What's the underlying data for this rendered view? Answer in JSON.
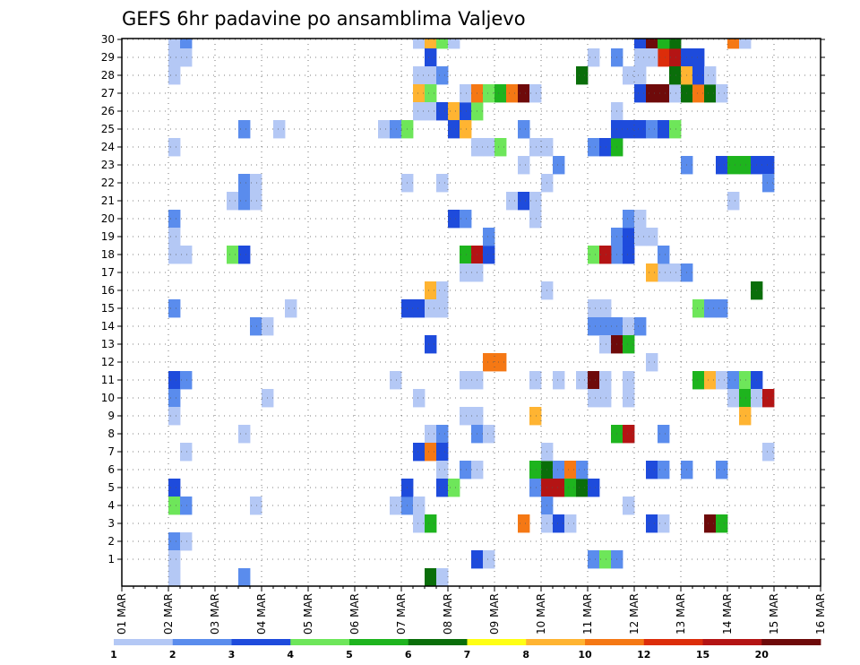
{
  "chart_data": {
    "type": "heatmap",
    "title": "GEFS 6hr padavine po ansamblima Valjevo",
    "x_tick_labels": [
      "01 MAR",
      "02 MAR",
      "03 MAR",
      "04 MAR",
      "05 MAR",
      "06 MAR",
      "07 MAR",
      "08 MAR",
      "09 MAR",
      "10 MAR",
      "11 MAR",
      "12 MAR",
      "13 MAR",
      "14 MAR",
      "15 MAR",
      "16 MAR"
    ],
    "y_tick_labels": [
      "1",
      "2",
      "3",
      "4",
      "5",
      "6",
      "7",
      "8",
      "9",
      "10",
      "11",
      "12",
      "13",
      "14",
      "15",
      "16",
      "17",
      "18",
      "19",
      "20",
      "21",
      "22",
      "23",
      "24",
      "25",
      "26",
      "27",
      "28",
      "29",
      "30"
    ],
    "x_range_days": [
      0,
      15
    ],
    "time_step_hours": 6,
    "y_range_members": [
      0,
      30
    ],
    "grid": "dotted",
    "colorbar": {
      "position": "bottom",
      "tick_labels": [
        "1",
        "2",
        "3",
        "4",
        "5",
        "6",
        "7",
        "8",
        "10",
        "12",
        "15",
        "20"
      ],
      "bins": [
        {
          "from": 1,
          "to": 2,
          "color": "#b4c8f5"
        },
        {
          "from": 2,
          "to": 3,
          "color": "#5a8ced"
        },
        {
          "from": 3,
          "to": 4,
          "color": "#1e4bdc"
        },
        {
          "from": 4,
          "to": 5,
          "color": "#6ee65a"
        },
        {
          "from": 5,
          "to": 6,
          "color": "#1eb41e"
        },
        {
          "from": 6,
          "to": 7,
          "color": "#0a6e0a"
        },
        {
          "from": 7,
          "to": 8,
          "color": "#ffff14"
        },
        {
          "from": 8,
          "to": 10,
          "color": "#ffb432"
        },
        {
          "from": 10,
          "to": 12,
          "color": "#f57814"
        },
        {
          "from": 12,
          "to": 15,
          "color": "#dc2d0a"
        },
        {
          "from": 15,
          "to": 20,
          "color": "#b41414"
        },
        {
          "from": 20,
          "to": null,
          "color": "#6e0a0a"
        }
      ]
    },
    "cell_columns": [
      "day_offset",
      "member",
      "precip_class"
    ],
    "cells": [
      [
        1.0,
        30,
        1
      ],
      [
        1.25,
        30,
        2
      ],
      [
        1.0,
        29,
        1
      ],
      [
        1.25,
        29,
        1
      ],
      [
        1.0,
        28,
        1
      ],
      [
        1.0,
        24,
        1
      ],
      [
        1.0,
        20,
        2
      ],
      [
        1.0,
        19,
        1
      ],
      [
        1.0,
        18,
        1
      ],
      [
        1.25,
        18,
        1
      ],
      [
        1.0,
        15,
        2
      ],
      [
        1.0,
        11,
        3
      ],
      [
        1.25,
        11,
        2
      ],
      [
        1.0,
        10,
        2
      ],
      [
        1.0,
        9,
        1
      ],
      [
        1.25,
        7,
        1
      ],
      [
        1.0,
        5,
        3
      ],
      [
        1.0,
        4,
        4
      ],
      [
        1.25,
        4,
        2
      ],
      [
        1.0,
        2,
        2
      ],
      [
        1.25,
        2,
        1
      ],
      [
        1.0,
        1,
        1
      ],
      [
        1.0,
        0,
        1
      ],
      [
        2.25,
        21,
        1
      ],
      [
        2.5,
        25,
        2
      ],
      [
        2.5,
        22,
        2
      ],
      [
        2.5,
        21,
        2
      ],
      [
        2.75,
        22,
        1
      ],
      [
        2.75,
        21,
        1
      ],
      [
        2.25,
        18,
        4
      ],
      [
        2.5,
        18,
        3
      ],
      [
        2.5,
        8,
        1
      ],
      [
        2.5,
        0,
        2
      ],
      [
        2.75,
        14,
        2
      ],
      [
        3.0,
        14,
        1
      ],
      [
        2.75,
        4,
        1
      ],
      [
        3.0,
        10,
        1
      ],
      [
        3.25,
        25,
        1
      ],
      [
        3.5,
        15,
        1
      ],
      [
        5.5,
        25,
        1
      ],
      [
        5.75,
        25,
        2
      ],
      [
        6.0,
        25,
        4
      ],
      [
        5.75,
        11,
        1
      ],
      [
        5.75,
        4,
        1
      ],
      [
        6.0,
        4,
        2
      ],
      [
        6.0,
        22,
        1
      ],
      [
        6.0,
        15,
        3
      ],
      [
        6.25,
        15,
        3
      ],
      [
        6.0,
        5,
        3
      ],
      [
        6.25,
        3,
        1
      ],
      [
        6.25,
        7,
        3
      ],
      [
        6.25,
        10,
        1
      ],
      [
        6.25,
        4,
        1
      ],
      [
        6.25,
        30,
        1
      ],
      [
        6.5,
        30,
        8
      ],
      [
        6.75,
        30,
        4
      ],
      [
        7.0,
        30,
        1
      ],
      [
        6.5,
        29,
        3
      ],
      [
        6.25,
        28,
        1
      ],
      [
        6.5,
        28,
        1
      ],
      [
        6.75,
        28,
        2
      ],
      [
        6.25,
        27,
        8
      ],
      [
        6.5,
        27,
        4
      ],
      [
        6.25,
        26,
        1
      ],
      [
        6.5,
        26,
        1
      ],
      [
        6.75,
        26,
        3
      ],
      [
        7.0,
        26,
        8
      ],
      [
        7.25,
        26,
        3
      ],
      [
        7.5,
        26,
        4
      ],
      [
        7.25,
        27,
        1
      ],
      [
        7.5,
        27,
        9
      ],
      [
        7.75,
        27,
        4
      ],
      [
        8.0,
        27,
        5
      ],
      [
        8.25,
        27,
        9
      ],
      [
        8.5,
        27,
        12
      ],
      [
        8.75,
        27,
        1
      ],
      [
        7.0,
        25,
        3
      ],
      [
        7.25,
        25,
        8
      ],
      [
        8.5,
        25,
        2
      ],
      [
        7.5,
        24,
        1
      ],
      [
        7.75,
        24,
        1
      ],
      [
        8.0,
        24,
        4
      ],
      [
        8.5,
        23,
        1
      ],
      [
        6.75,
        22,
        1
      ],
      [
        8.25,
        21,
        1
      ],
      [
        8.5,
        21,
        3
      ],
      [
        8.75,
        21,
        1
      ],
      [
        7.0,
        20,
        3
      ],
      [
        7.25,
        20,
        2
      ],
      [
        7.25,
        18,
        5
      ],
      [
        7.5,
        18,
        11
      ],
      [
        7.75,
        18,
        3
      ],
      [
        7.75,
        19,
        2
      ],
      [
        6.5,
        16,
        8
      ],
      [
        6.75,
        16,
        1
      ],
      [
        7.25,
        17,
        1
      ],
      [
        7.5,
        17,
        1
      ],
      [
        6.5,
        15,
        1
      ],
      [
        6.75,
        15,
        1
      ],
      [
        6.5,
        13,
        3
      ],
      [
        7.75,
        12,
        9
      ],
      [
        8.0,
        12,
        9
      ],
      [
        7.25,
        11,
        1
      ],
      [
        7.5,
        11,
        1
      ],
      [
        7.25,
        9,
        1
      ],
      [
        7.5,
        9,
        1
      ],
      [
        6.5,
        8,
        1
      ],
      [
        6.75,
        8,
        2
      ],
      [
        7.5,
        8,
        2
      ],
      [
        7.75,
        8,
        1
      ],
      [
        6.5,
        7,
        9
      ],
      [
        6.75,
        7,
        3
      ],
      [
        6.75,
        6,
        1
      ],
      [
        7.25,
        6,
        2
      ],
      [
        7.5,
        6,
        1
      ],
      [
        6.75,
        5,
        3
      ],
      [
        7.0,
        5,
        4
      ],
      [
        6.5,
        3,
        5
      ],
      [
        6.5,
        0,
        6
      ],
      [
        6.75,
        0,
        1
      ],
      [
        7.5,
        1,
        3
      ],
      [
        7.75,
        1,
        1
      ],
      [
        8.5,
        25,
        2
      ],
      [
        8.75,
        24,
        1
      ],
      [
        8.75,
        20,
        1
      ],
      [
        9.0,
        22,
        1
      ],
      [
        9.25,
        23,
        2
      ],
      [
        9.0,
        24,
        1
      ],
      [
        9.0,
        16,
        1
      ],
      [
        8.75,
        11,
        1
      ],
      [
        9.25,
        11,
        1
      ],
      [
        8.75,
        9,
        8
      ],
      [
        8.75,
        6,
        5
      ],
      [
        9.0,
        6,
        6
      ],
      [
        9.25,
        6,
        2
      ],
      [
        9.5,
        6,
        9
      ],
      [
        8.75,
        5,
        2
      ],
      [
        9.0,
        5,
        11
      ],
      [
        9.25,
        5,
        11
      ],
      [
        9.5,
        5,
        5
      ],
      [
        9.75,
        5,
        6
      ],
      [
        10.0,
        5,
        3
      ],
      [
        9.0,
        4,
        2
      ],
      [
        8.5,
        3,
        9
      ],
      [
        9.0,
        3,
        1
      ],
      [
        9.25,
        3,
        3
      ],
      [
        9.5,
        3,
        1
      ],
      [
        9.0,
        7,
        1
      ],
      [
        9.75,
        11,
        1
      ],
      [
        9.75,
        6,
        2
      ],
      [
        9.75,
        28,
        6
      ],
      [
        10.0,
        24,
        2
      ],
      [
        10.25,
        24,
        3
      ],
      [
        10.5,
        24,
        5
      ],
      [
        10.0,
        15,
        1
      ],
      [
        10.25,
        15,
        1
      ],
      [
        10.0,
        14,
        2
      ],
      [
        10.25,
        14,
        2
      ],
      [
        10.5,
        14,
        2
      ],
      [
        10.75,
        14,
        1
      ],
      [
        11.0,
        14,
        2
      ],
      [
        10.25,
        13,
        1
      ],
      [
        10.5,
        13,
        12
      ],
      [
        10.75,
        13,
        5
      ],
      [
        10.0,
        11,
        12
      ],
      [
        10.25,
        11,
        1
      ],
      [
        10.5,
        18,
        2
      ],
      [
        10.75,
        18,
        3
      ],
      [
        10.0,
        18,
        4
      ],
      [
        10.25,
        18,
        11
      ],
      [
        10.5,
        19,
        2
      ],
      [
        10.75,
        19,
        3
      ],
      [
        10.75,
        20,
        2
      ],
      [
        11.0,
        20,
        1
      ],
      [
        11.0,
        19,
        1
      ],
      [
        11.25,
        19,
        1
      ],
      [
        10.0,
        10,
        1
      ],
      [
        10.25,
        10,
        1
      ],
      [
        10.75,
        10,
        1
      ],
      [
        10.5,
        8,
        5
      ],
      [
        10.75,
        8,
        11
      ],
      [
        10.0,
        29,
        1
      ],
      [
        10.5,
        29,
        2
      ],
      [
        10.75,
        28,
        1
      ],
      [
        11.0,
        28,
        1
      ],
      [
        10.5,
        26,
        1
      ],
      [
        10.5,
        25,
        3
      ],
      [
        10.75,
        25,
        3
      ],
      [
        11.0,
        25,
        3
      ],
      [
        11.25,
        25,
        2
      ],
      [
        11.5,
        25,
        3
      ],
      [
        11.75,
        25,
        4
      ],
      [
        11.0,
        27,
        3
      ],
      [
        11.25,
        27,
        12
      ],
      [
        11.5,
        27,
        12
      ],
      [
        11.75,
        27,
        1
      ],
      [
        12.0,
        27,
        6
      ],
      [
        12.25,
        27,
        9
      ],
      [
        12.5,
        27,
        6
      ],
      [
        12.75,
        27,
        1
      ],
      [
        11.5,
        29,
        10
      ],
      [
        11.75,
        29,
        11
      ],
      [
        12.0,
        29,
        3
      ],
      [
        12.25,
        29,
        3
      ],
      [
        11.75,
        28,
        6
      ],
      [
        12.0,
        28,
        8
      ],
      [
        12.25,
        28,
        3
      ],
      [
        12.5,
        28,
        1
      ],
      [
        11.75,
        30,
        6
      ],
      [
        11.0,
        30,
        3
      ],
      [
        11.25,
        30,
        12
      ],
      [
        11.5,
        30,
        5
      ],
      [
        11.0,
        29,
        1
      ],
      [
        11.25,
        29,
        1
      ],
      [
        11.5,
        17,
        1
      ],
      [
        11.75,
        17,
        1
      ],
      [
        11.5,
        18,
        2
      ],
      [
        11.25,
        17,
        8
      ],
      [
        10.75,
        11,
        1
      ],
      [
        11.25,
        12,
        1
      ],
      [
        11.5,
        8,
        2
      ],
      [
        11.25,
        6,
        3
      ],
      [
        11.5,
        6,
        2
      ],
      [
        11.25,
        3,
        3
      ],
      [
        11.5,
        3,
        1
      ],
      [
        10.0,
        1,
        2
      ],
      [
        10.25,
        1,
        4
      ],
      [
        10.5,
        1,
        2
      ],
      [
        10.75,
        4,
        1
      ],
      [
        12.0,
        17,
        2
      ],
      [
        12.25,
        15,
        4
      ],
      [
        12.5,
        15,
        2
      ],
      [
        12.75,
        15,
        2
      ],
      [
        12.25,
        11,
        5
      ],
      [
        12.5,
        11,
        8
      ],
      [
        12.75,
        11,
        1
      ],
      [
        13.0,
        11,
        2
      ],
      [
        13.25,
        11,
        4
      ],
      [
        13.5,
        11,
        3
      ],
      [
        13.0,
        10,
        1
      ],
      [
        13.25,
        10,
        5
      ],
      [
        13.5,
        10,
        1
      ],
      [
        13.75,
        10,
        11
      ],
      [
        12.0,
        6,
        2
      ],
      [
        12.75,
        6,
        2
      ],
      [
        12.5,
        3,
        12
      ],
      [
        12.75,
        3,
        5
      ],
      [
        12.0,
        23,
        2
      ],
      [
        12.75,
        23,
        3
      ],
      [
        13.0,
        23,
        5
      ],
      [
        13.25,
        23,
        5
      ],
      [
        13.5,
        23,
        3
      ],
      [
        13.75,
        23,
        3
      ],
      [
        13.75,
        22,
        2
      ],
      [
        13.0,
        21,
        1
      ],
      [
        13.5,
        16,
        6
      ],
      [
        13.0,
        30,
        9
      ],
      [
        13.25,
        30,
        1
      ],
      [
        13.25,
        9,
        8
      ],
      [
        13.75,
        7,
        1
      ]
    ]
  }
}
